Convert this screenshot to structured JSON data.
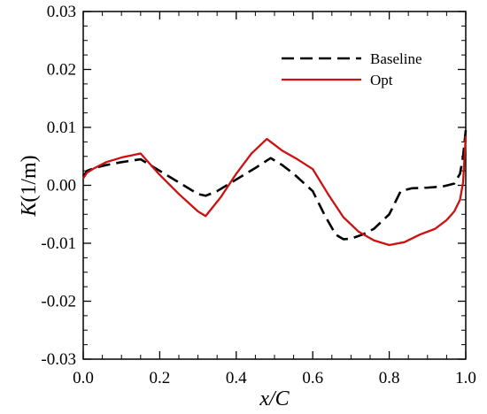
{
  "chart_data": {
    "type": "line",
    "title": "",
    "xlabel": "x/C",
    "ylabel": {
      "italic": "K",
      "rest": "(1/m)"
    },
    "xlim": [
      0.0,
      1.0
    ],
    "ylim": [
      -0.03,
      0.03
    ],
    "xticks": [
      0.0,
      0.2,
      0.4,
      0.6,
      0.8,
      1.0
    ],
    "xtick_labels": [
      "0.0",
      "0.2",
      "0.4",
      "0.6",
      "0.8",
      "1.0"
    ],
    "yticks": [
      -0.03,
      -0.02,
      -0.01,
      0.0,
      0.01,
      0.02,
      0.03
    ],
    "ytick_labels": [
      "-0.03",
      "-0.02",
      "-0.01",
      "0.00",
      "0.01",
      "0.02",
      "0.03"
    ],
    "grid": false,
    "legend": "top-right",
    "series": [
      {
        "name": "Baseline",
        "color": "#000000",
        "dash": "dashed",
        "x": [
          0.0,
          0.01,
          0.03,
          0.06,
          0.1,
          0.15,
          0.2,
          0.25,
          0.3,
          0.32,
          0.35,
          0.4,
          0.45,
          0.49,
          0.52,
          0.55,
          0.6,
          0.63,
          0.66,
          0.68,
          0.7,
          0.73,
          0.76,
          0.8,
          0.83,
          0.86,
          0.9,
          0.94,
          0.97,
          0.985,
          0.993,
          1.0
        ],
        "y": [
          0.0015,
          0.0025,
          0.003,
          0.0035,
          0.004,
          0.0045,
          0.0025,
          0.0005,
          -0.0015,
          -0.0018,
          -0.001,
          0.001,
          0.003,
          0.0047,
          0.0035,
          0.002,
          -0.001,
          -0.005,
          -0.0085,
          -0.0093,
          -0.0092,
          -0.0085,
          -0.0075,
          -0.005,
          -0.001,
          -0.0005,
          -0.0004,
          -0.0002,
          0.0003,
          0.002,
          0.005,
          0.0095
        ]
      },
      {
        "name": "Opt",
        "color": "#cc1111",
        "dash": "solid",
        "x": [
          0.0,
          0.01,
          0.03,
          0.06,
          0.1,
          0.15,
          0.2,
          0.25,
          0.3,
          0.32,
          0.36,
          0.4,
          0.44,
          0.48,
          0.52,
          0.56,
          0.6,
          0.64,
          0.68,
          0.72,
          0.76,
          0.8,
          0.84,
          0.88,
          0.92,
          0.95,
          0.97,
          0.985,
          0.993,
          1.0
        ],
        "y": [
          0.0012,
          0.0022,
          0.003,
          0.004,
          0.0048,
          0.0055,
          0.0018,
          -0.0015,
          -0.0045,
          -0.0053,
          -0.002,
          0.002,
          0.0055,
          0.008,
          0.006,
          0.0045,
          0.0028,
          -0.0015,
          -0.0055,
          -0.008,
          -0.0095,
          -0.0103,
          -0.0098,
          -0.0085,
          -0.0075,
          -0.006,
          -0.0045,
          -0.0025,
          0.0005,
          0.0085
        ]
      }
    ]
  }
}
